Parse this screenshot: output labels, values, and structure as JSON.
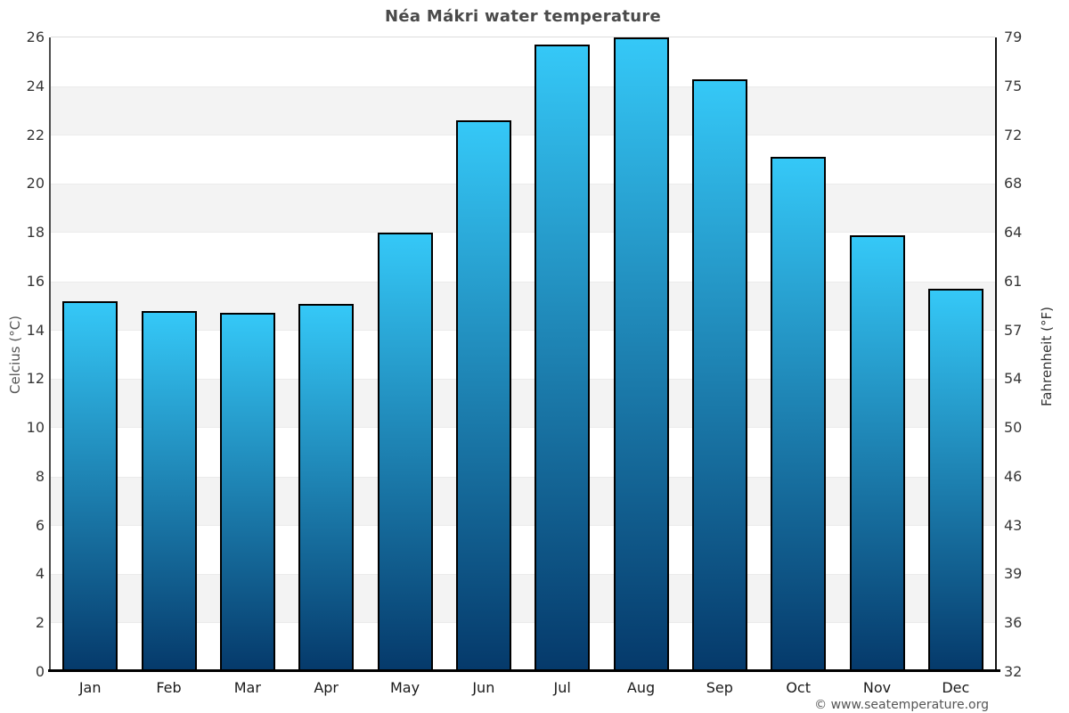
{
  "title": "Néa Mákri water temperature",
  "chart_data": {
    "type": "bar",
    "title": "Néa Mákri water temperature",
    "categories": [
      "Jan",
      "Feb",
      "Mar",
      "Apr",
      "May",
      "Jun",
      "Jul",
      "Aug",
      "Sep",
      "Oct",
      "Nov",
      "Dec"
    ],
    "values": [
      15.2,
      14.8,
      14.7,
      15.1,
      18.0,
      22.6,
      25.7,
      26.0,
      24.3,
      21.1,
      17.9,
      15.7
    ],
    "ylabel_left": "Celcius (°C)",
    "ylabel_right": "Fahrenheit (°F)",
    "ylim": [
      0,
      26
    ],
    "y_ticks_celsius": [
      26,
      24,
      22,
      20,
      18,
      16,
      14,
      12,
      10,
      8,
      6,
      4,
      2,
      0
    ],
    "y_ticks_fahrenheit": [
      79,
      75,
      72,
      68,
      64,
      61,
      57,
      54,
      50,
      46,
      43,
      39,
      36,
      32
    ],
    "grid": "horizontal zebra bands every 2°C",
    "legend": "none"
  },
  "footer": {
    "copyright": "© www.seatemperature.org"
  },
  "colors": {
    "bar_gradient_top": "#35c8f7",
    "bar_gradient_bottom": "#05396a",
    "bar_border": "#000000",
    "stripe_gray": "#f3f3f3",
    "axis_left": "#4d4d4d",
    "axis_right": "#141414",
    "axis_bottom": "#000000",
    "title_text": "#4a4a4a",
    "tick_text": "#383838",
    "month_text": "#1a1a1a",
    "copyright_text": "#555555"
  }
}
